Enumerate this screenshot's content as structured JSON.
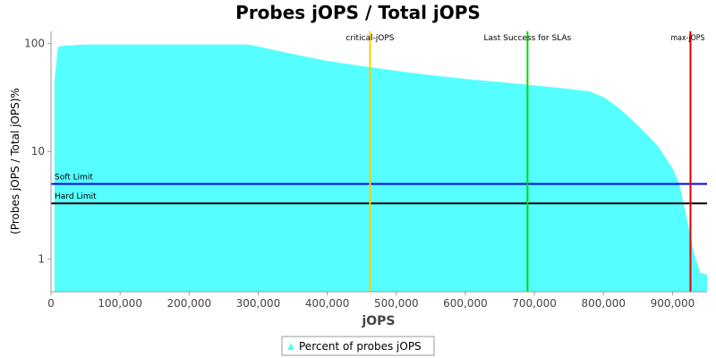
{
  "chart_data": {
    "type": "area",
    "title": "Probes jOPS / Total jOPS",
    "xlabel": "jOPS",
    "ylabel": "(Probes jOPS / Total jOPS)%",
    "y_scale": "log",
    "xlim": [
      0,
      950000
    ],
    "ylim": [
      0.5,
      130
    ],
    "x_ticks": [
      0,
      100000,
      200000,
      300000,
      400000,
      500000,
      600000,
      700000,
      800000,
      900000
    ],
    "x_tick_labels": [
      "0",
      "100,000",
      "200,000",
      "300,000",
      "400,000",
      "500,000",
      "600,000",
      "700,000",
      "800,000",
      "900,000"
    ],
    "y_ticks": [
      1,
      10,
      100
    ],
    "y_tick_labels": [
      "1",
      "10",
      "100"
    ],
    "series": [
      {
        "name": "Percent of probes jOPS",
        "color": "#55ffff",
        "points": [
          [
            5000,
            45
          ],
          [
            10000,
            93
          ],
          [
            20000,
            96
          ],
          [
            50000,
            98
          ],
          [
            100000,
            98
          ],
          [
            200000,
            98
          ],
          [
            285000,
            98
          ],
          [
            300000,
            94
          ],
          [
            350000,
            80
          ],
          [
            400000,
            69
          ],
          [
            450000,
            62
          ],
          [
            500000,
            56
          ],
          [
            550000,
            51
          ],
          [
            600000,
            47
          ],
          [
            650000,
            44
          ],
          [
            700000,
            41
          ],
          [
            750000,
            38
          ],
          [
            780000,
            36
          ],
          [
            800000,
            32
          ],
          [
            820000,
            26
          ],
          [
            840000,
            20
          ],
          [
            860000,
            15
          ],
          [
            880000,
            11
          ],
          [
            900000,
            7
          ],
          [
            910000,
            5
          ],
          [
            920000,
            2.5
          ],
          [
            930000,
            1.2
          ],
          [
            940000,
            0.75
          ],
          [
            950000,
            0.72
          ]
        ]
      }
    ],
    "horizontal_lines": [
      {
        "label": "Soft Limit",
        "value": 5.0,
        "color": "#0000ee"
      },
      {
        "label": "Hard Limit",
        "value": 3.3,
        "color": "#000000"
      }
    ],
    "vertical_markers": [
      {
        "label": "critical-jOPS",
        "x": 462000,
        "color": "#ffcc00"
      },
      {
        "label": "Last Success for SLAs",
        "x": 690000,
        "color": "#00dd00"
      },
      {
        "label": "max-jOPS",
        "x": 926000,
        "color": "#dd0000"
      }
    ],
    "grid": false,
    "legend": {
      "position": "bottom-center",
      "entries": [
        "Percent of probes jOPS"
      ]
    }
  }
}
